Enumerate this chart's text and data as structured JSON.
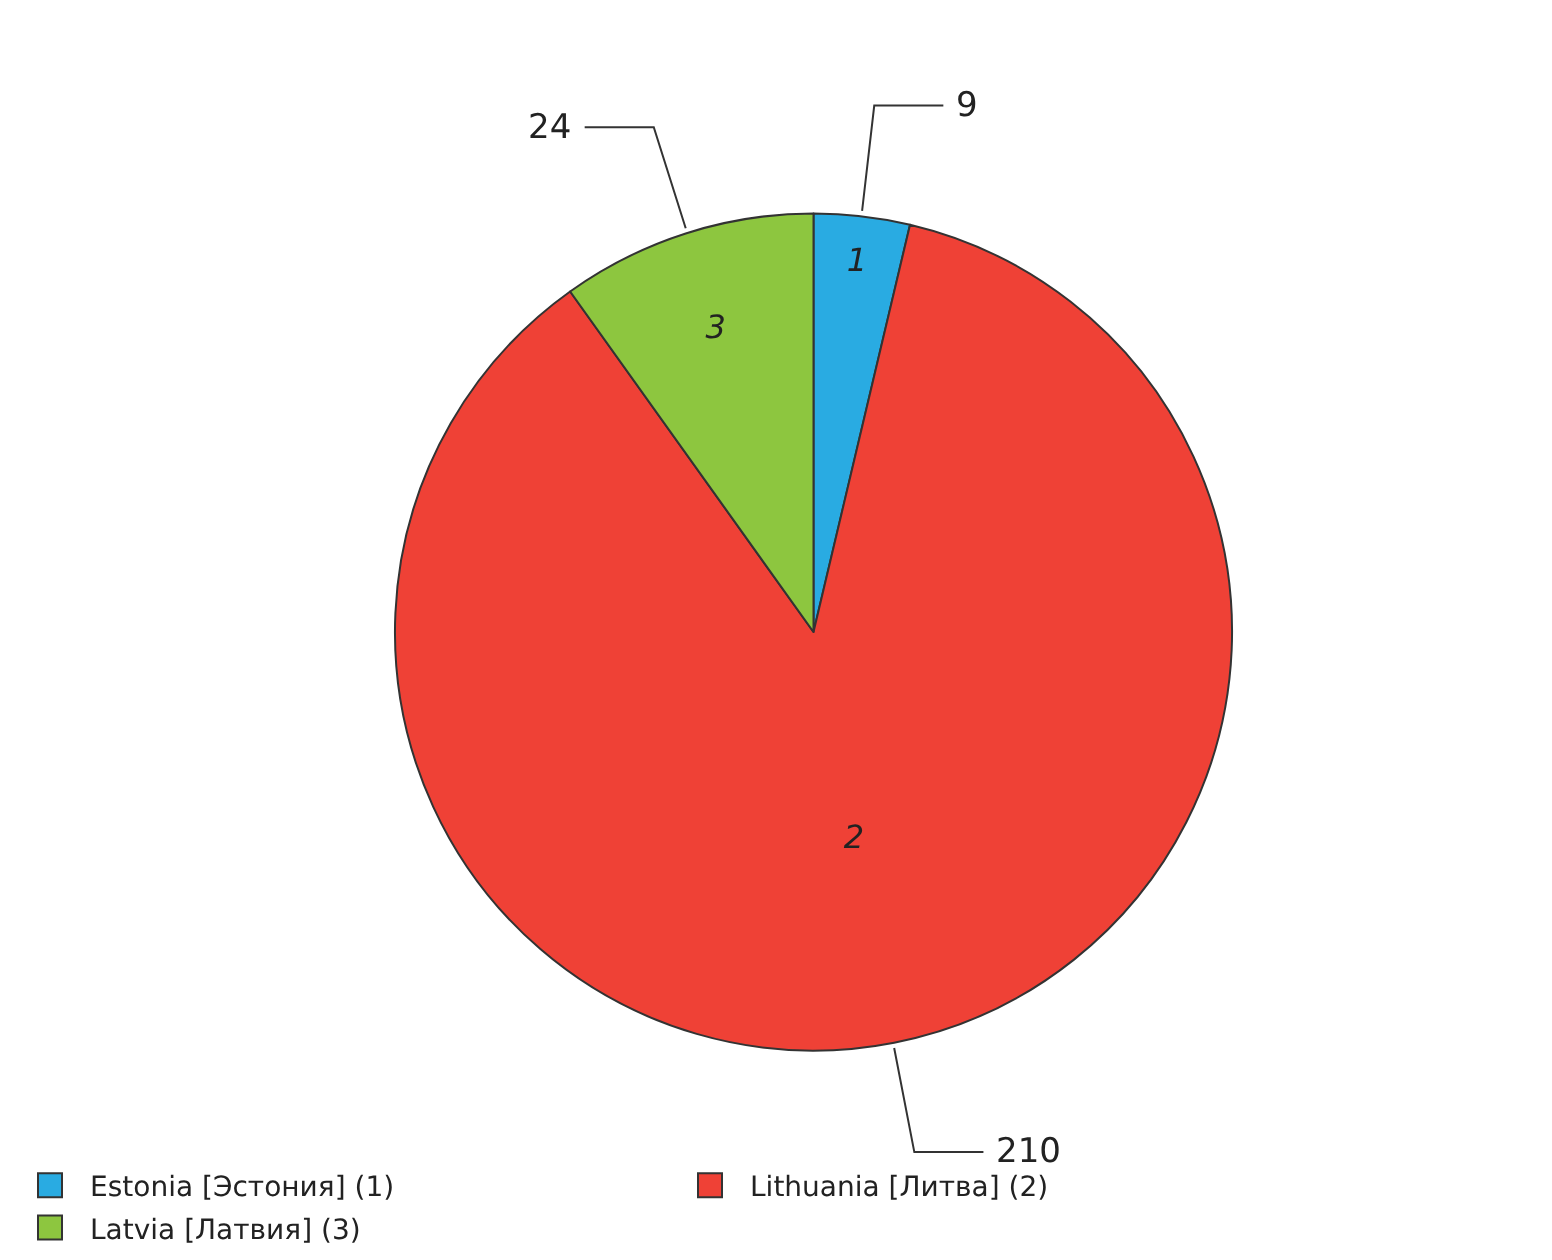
{
  "chart_data": {
    "type": "pie",
    "categories": [
      "Estonia [Эстония] (1)",
      "Lithuania [Литва] (2)",
      "Latvia [Латвия] (3)"
    ],
    "values": [
      9,
      210,
      24
    ],
    "colors": [
      "#29abe2",
      "#ef4136",
      "#8dc63f"
    ],
    "annotations": [
      "1",
      "2",
      "3"
    ],
    "data_labels": true,
    "legend": "bottom"
  }
}
